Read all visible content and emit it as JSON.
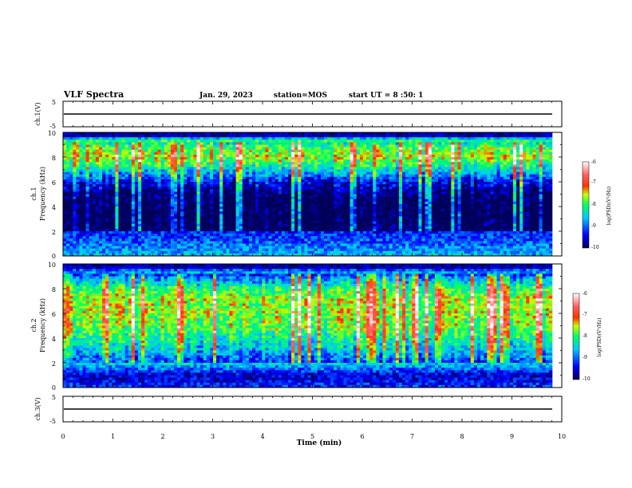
{
  "header": {
    "title": "VLF Spectra",
    "date": "Jan. 29, 2023",
    "station": "station=MOS",
    "start": "start UT =  8 :50: 1"
  },
  "panels": {
    "ch1_voltage": {
      "ylabel": "ch.1(V)",
      "ticks": [
        "5",
        "-5"
      ]
    },
    "ch1_spec": {
      "ylabel_top": "ch.1",
      "ylabel_bottom": "Frequency (kHz)",
      "ticks": [
        "0",
        "2",
        "4",
        "6",
        "8",
        "10"
      ]
    },
    "ch2_spec": {
      "ylabel_top": "ch.2",
      "ylabel_bottom": "Frequency (kHz)",
      "ticks": [
        "0",
        "2",
        "4",
        "6",
        "8",
        "10"
      ]
    },
    "ch3_voltage": {
      "ylabel": "ch.3(V)",
      "ticks": [
        "5",
        "-5"
      ]
    }
  },
  "colorbar": {
    "label": "log(PSD)(V²/Hz)",
    "ticks": [
      "-6",
      "-7",
      "-8",
      "-9",
      "-10"
    ]
  },
  "x_axis": {
    "label": "Time (min)",
    "ticks": [
      "0",
      "1",
      "2",
      "3",
      "4",
      "5",
      "6",
      "7",
      "8",
      "9",
      "10"
    ]
  },
  "chart_data": [
    {
      "type": "line",
      "title": "",
      "ylabel": "ch.1(V)",
      "xlabel": "Time (min)",
      "xlim": [
        0,
        10
      ],
      "ylim": [
        -5,
        5
      ],
      "series": [
        {
          "x": [
            0,
            9.8
          ],
          "values": [
            0,
            0
          ]
        }
      ]
    },
    {
      "type": "heatmap",
      "ylabel": "ch.1 Frequency (kHz)",
      "xlabel": "Time (min)",
      "xlim": [
        0,
        10
      ],
      "ylim": [
        0,
        10
      ],
      "zlim": [
        -10,
        -6
      ],
      "zlabel": "log(PSD)(V²/Hz)",
      "colors": [
        "#00008b",
        "#0000ff",
        "#00ffff",
        "#00ff00",
        "#ffff00",
        "#ff0000",
        "#ffffff"
      ],
      "band_profile_kHz": [
        0,
        1,
        2,
        3,
        4,
        5,
        6,
        7,
        8,
        9,
        10
      ],
      "band_profile_logpsd": [
        -8.6,
        -9.0,
        -9.3,
        -9.4,
        -9.4,
        -9.2,
        -8.6,
        -7.6,
        -6.8,
        -7.2,
        -10
      ]
    },
    {
      "type": "heatmap",
      "ylabel": "ch.2 Frequency (kHz)",
      "xlabel": "Time (min)",
      "xlim": [
        0,
        10
      ],
      "ylim": [
        0,
        10
      ],
      "zlim": [
        -10,
        -6
      ],
      "zlabel": "log(PSD)(V²/Hz)",
      "colors": [
        "#00008b",
        "#0000ff",
        "#00ffff",
        "#00ff00",
        "#ffff00",
        "#ff0000",
        "#ffffff"
      ],
      "band_profile_kHz": [
        0,
        1,
        2,
        3,
        4,
        5,
        6,
        7,
        8,
        9,
        10
      ],
      "band_profile_logpsd": [
        -9.2,
        -9.6,
        -8.4,
        -7.8,
        -7.4,
        -7.0,
        -6.9,
        -6.8,
        -7.2,
        -8.2,
        -10
      ]
    },
    {
      "type": "line",
      "title": "",
      "ylabel": "ch.3(V)",
      "xlabel": "Time (min)",
      "xlim": [
        0,
        10
      ],
      "ylim": [
        -5,
        5
      ],
      "series": [
        {
          "x": [
            0,
            9.8
          ],
          "values": [
            0,
            0
          ]
        }
      ]
    }
  ]
}
